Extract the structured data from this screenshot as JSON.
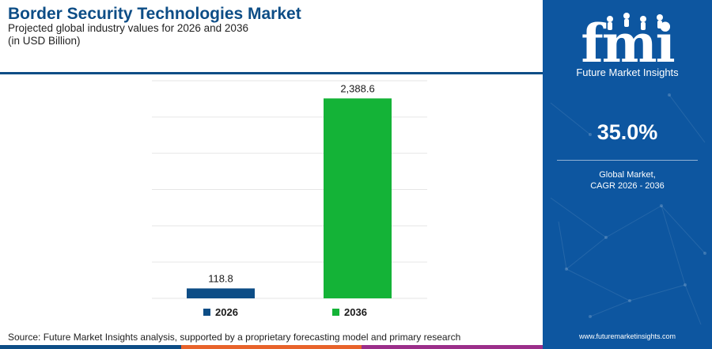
{
  "header": {
    "title": "Border Security Technologies Market",
    "subtitle": "Projected global industry values for 2026 and 2036",
    "unit": "(in USD Billion)"
  },
  "chart_data": {
    "type": "bar",
    "title": "Border Security Technologies Market",
    "subtitle": "Projected global industry values for 2026 and 2036",
    "unit": "(in USD Billion)",
    "categories": [
      "2026",
      "2036"
    ],
    "values": [
      118.8,
      2388.6
    ],
    "value_labels": [
      "118.8",
      "2,388.6"
    ],
    "colors": [
      "#0d4d86",
      "#14b337"
    ],
    "ylim": [
      0,
      2600
    ],
    "grid": true,
    "legend_position": "bottom"
  },
  "sidebar": {
    "logo_text": "fmi",
    "logo_subtitle": "Future Market Insights",
    "cagr_value": "35.0%",
    "cagr_label_line1": "Global Market,",
    "cagr_label_line2": "CAGR 2026 - 2036",
    "website": "www.futuremarketinsights.com",
    "accent_color": "#0d56a0"
  },
  "footer": {
    "source": "Source: Future Market Insights analysis, supported by a proprietary forecasting model and primary research",
    "bar_colors": [
      "#0d4d86",
      "#e8632b",
      "#9b2f8a"
    ]
  }
}
